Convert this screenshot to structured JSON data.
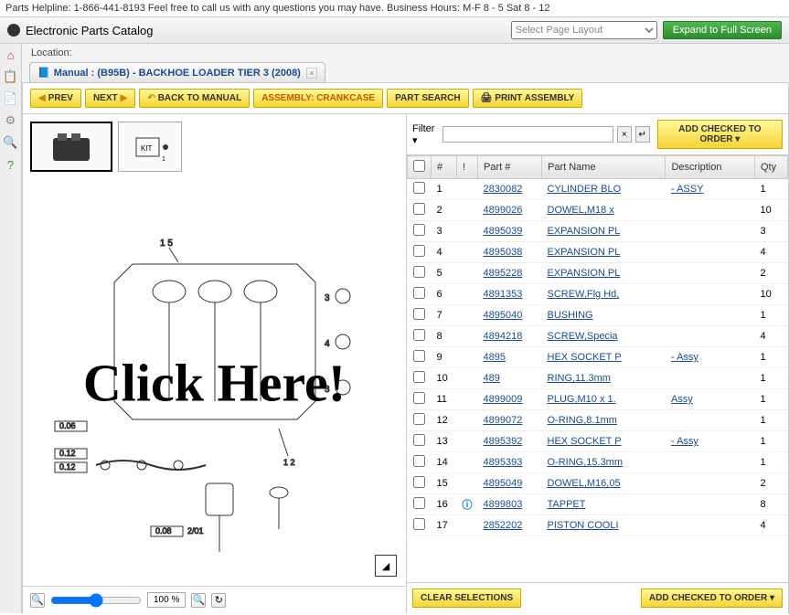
{
  "helpline": "Parts Helpline: 1-866-441-8193 Feel free to call us with any questions you may have. Business Hours: M-F 8 - 5 Sat 8 - 12",
  "app_title": "Electronic Parts Catalog",
  "layout_select_placeholder": "Select Page Layout",
  "expand_button": "Expand to Full Screen",
  "location_label": "Location:",
  "tab_title": "Manual : (B95B) - BACKHOE LOADER TIER 3 (2008)",
  "toolbar": {
    "prev": "PREV",
    "next": "NEXT",
    "back": "BACK TO MANUAL",
    "assembly": "ASSEMBLY: CRANKCASE",
    "search": "PART SEARCH",
    "print": "PRINT ASSEMBLY"
  },
  "filter_label": "Filter",
  "add_checked": "ADD CHECKED TO ORDER",
  "clear_selections": "CLEAR SELECTIONS",
  "zoom_value": "100 %",
  "overlay": "Click Here!",
  "columns": {
    "num": "#",
    "info": "!",
    "partno": "Part #",
    "partname": "Part Name",
    "desc": "Description",
    "qty": "Qty"
  },
  "rows": [
    {
      "n": "1",
      "part": "2830082",
      "name": "CYLINDER BLO",
      "desc": "- ASSY",
      "qty": "1",
      "info": ""
    },
    {
      "n": "2",
      "part": "4899026",
      "name": "DOWEL,M18 x",
      "desc": "",
      "qty": "10",
      "info": ""
    },
    {
      "n": "3",
      "part": "4895039",
      "name": "EXPANSION PL",
      "desc": "",
      "qty": "3",
      "info": ""
    },
    {
      "n": "4",
      "part": "4895038",
      "name": "EXPANSION PL",
      "desc": "",
      "qty": "4",
      "info": ""
    },
    {
      "n": "5",
      "part": "4895228",
      "name": "EXPANSION PL",
      "desc": "",
      "qty": "2",
      "info": ""
    },
    {
      "n": "6",
      "part": "4891353",
      "name": "SCREW,Flg Hd,",
      "desc": "",
      "qty": "10",
      "info": ""
    },
    {
      "n": "7",
      "part": "4895040",
      "name": "BUSHING",
      "desc": "",
      "qty": "1",
      "info": ""
    },
    {
      "n": "8",
      "part": "4894218",
      "name": "SCREW,Specia",
      "desc": "",
      "qty": "4",
      "info": ""
    },
    {
      "n": "9",
      "part": "4895",
      "name": "HEX SOCKET P",
      "desc": "- Assy",
      "qty": "1",
      "info": ""
    },
    {
      "n": "10",
      "part": "489",
      "name": "RING,11.3mm",
      "desc": "",
      "qty": "1",
      "info": ""
    },
    {
      "n": "11",
      "part": "4899009",
      "name": "PLUG,M10 x 1.",
      "desc": "Assy",
      "qty": "1",
      "info": ""
    },
    {
      "n": "12",
      "part": "4899072",
      "name": "O-RING,8.1mm",
      "desc": "",
      "qty": "1",
      "info": ""
    },
    {
      "n": "13",
      "part": "4895392",
      "name": "HEX SOCKET P",
      "desc": "- Assy",
      "qty": "1",
      "info": ""
    },
    {
      "n": "14",
      "part": "4895393",
      "name": "O-RING,15.3mm",
      "desc": "",
      "qty": "1",
      "info": ""
    },
    {
      "n": "15",
      "part": "4895049",
      "name": "DOWEL,M16,05",
      "desc": "",
      "qty": "2",
      "info": ""
    },
    {
      "n": "16",
      "part": "4899803",
      "name": "TAPPET",
      "desc": "",
      "qty": "8",
      "info": "i"
    },
    {
      "n": "17",
      "part": "2852202",
      "name": "PISTON COOLI",
      "desc": "",
      "qty": "4",
      "info": ""
    }
  ],
  "colors": {
    "yellow_light": "#fff89a",
    "yellow_dark": "#f6d433",
    "green": "#2e8b2e",
    "link": "#1a4b8c"
  }
}
